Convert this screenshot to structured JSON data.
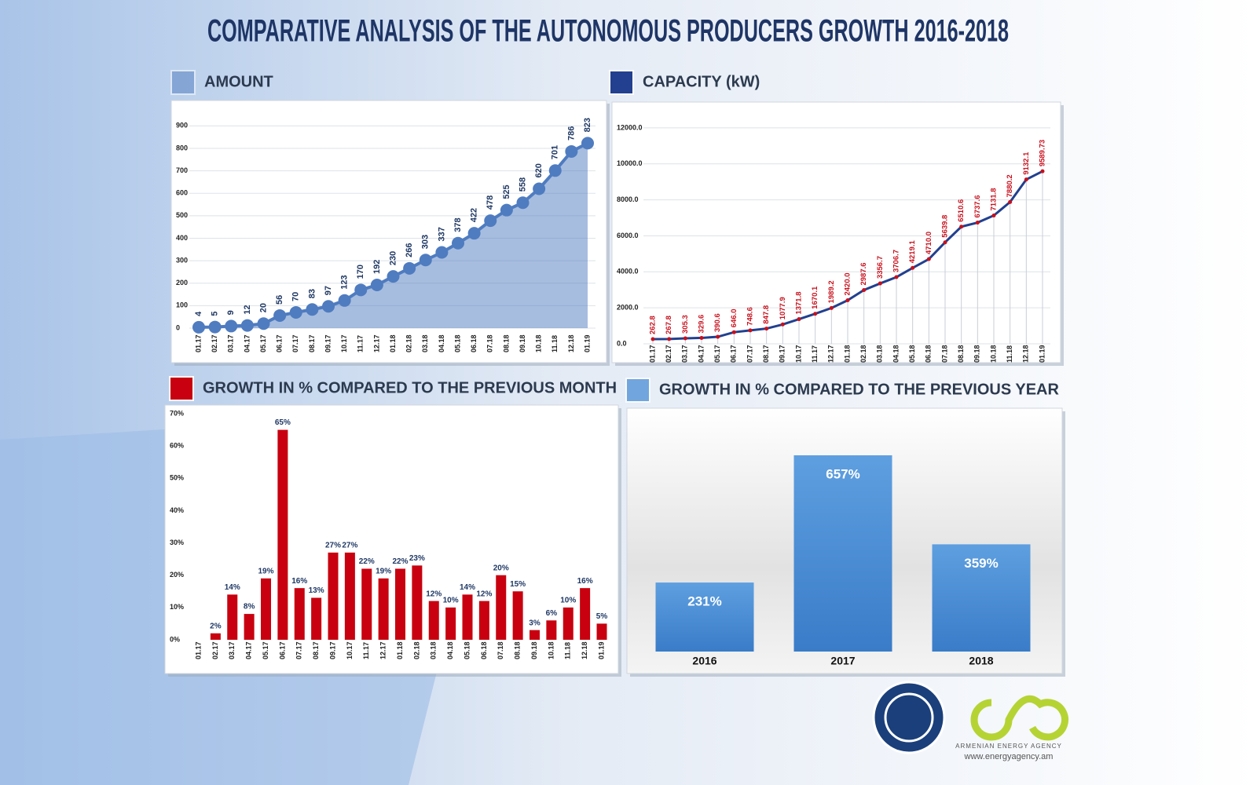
{
  "title": "COMPARATIVE ANALYSIS OF THE AUTONOMOUS PRODUCERS GROWTH 2016-2018",
  "agency": "ARMENIAN ENERGY AGENCY",
  "website": "www.energyagency.am",
  "chart_data": [
    {
      "type": "area",
      "title": "AMOUNT",
      "color": "#4f7cc0",
      "grid": true,
      "categories": [
        "01.17",
        "02.17",
        "03.17",
        "04.17",
        "05.17",
        "06.17",
        "07.17",
        "08.17",
        "09.17",
        "10.17",
        "11.17",
        "12.17",
        "01.18",
        "02.18",
        "03.18",
        "04.18",
        "05.18",
        "06.18",
        "07.18",
        "08.18",
        "09.18",
        "10.18",
        "11.18",
        "12.18",
        "01.19"
      ],
      "values": [
        4,
        5,
        9,
        12,
        20,
        56,
        70,
        83,
        97,
        123,
        170,
        192,
        230,
        266,
        303,
        337,
        378,
        422,
        478,
        525,
        558,
        620,
        701,
        786,
        823
      ],
      "ylim": [
        0,
        950
      ],
      "yticks": [
        0,
        100,
        200,
        300,
        400,
        500,
        600,
        700,
        800,
        900
      ]
    },
    {
      "type": "line",
      "title": "CAPACITY (kW)",
      "color": "#22408f",
      "point_color": "#c8101c",
      "grid": true,
      "categories": [
        "01.17",
        "02.17",
        "03.17",
        "04.17",
        "05.17",
        "06.17",
        "07.17",
        "08.17",
        "09.17",
        "10.17",
        "11.17",
        "12.17",
        "01.18",
        "02.18",
        "03.18",
        "04.18",
        "05.18",
        "06.18",
        "07.18",
        "08.18",
        "09.18",
        "10.18",
        "11.18",
        "12.18",
        "01.19"
      ],
      "values": [
        262.8,
        267.8,
        305.3,
        329.6,
        390.6,
        646.0,
        748.6,
        847.8,
        1077.9,
        1371.8,
        1670.1,
        1989.2,
        2420.0,
        2987.6,
        3356.7,
        3706.7,
        4219.1,
        4710.0,
        5639.8,
        6510.6,
        6737.6,
        7131.8,
        7880.2,
        9132.1,
        9589.73
      ],
      "value_labels": [
        "262.8",
        "267.8",
        "305.3",
        "329.6",
        "390.6",
        "646.0",
        "748.6",
        "847.8",
        "1077.9",
        "1371.8",
        "1670.1",
        "1989.2",
        "2420.0",
        "2987.6",
        "3356.7",
        "3706.7",
        "4219.1",
        "4710.0",
        "5639.8",
        "6510.6",
        "6737.6",
        "7131.8",
        "7880.2",
        "9132.1",
        "9589.73"
      ],
      "ylim": [
        0,
        13000
      ],
      "yticks": [
        {
          "value": 0,
          "label": "0.0"
        },
        {
          "value": 2000,
          "label": "2000.0"
        },
        {
          "value": 4000,
          "label": "4000.0"
        },
        {
          "value": 6000,
          "label": "6000.0"
        },
        {
          "value": 8000,
          "label": "8000.0"
        },
        {
          "value": 10000,
          "label": "10000.0"
        },
        {
          "value": 12000,
          "label": "12000.0"
        }
      ]
    },
    {
      "type": "bar",
      "title": "GROWTH IN % COMPARED TO THE PREVIOUS MONTH",
      "color": "#c8000f",
      "grid": false,
      "categories": [
        "01.17",
        "02.17",
        "03.17",
        "04.17",
        "05.17",
        "06.17",
        "07.17",
        "08.17",
        "09.17",
        "10.17",
        "11.17",
        "12.17",
        "01.18",
        "02.18",
        "03.18",
        "04.18",
        "05.18",
        "06.18",
        "07.18",
        "08.18",
        "09.18",
        "10.18",
        "11.18",
        "12.18",
        "01.19"
      ],
      "values": [
        null,
        2,
        14,
        8,
        19,
        65,
        16,
        13,
        27,
        27,
        22,
        19,
        22,
        23,
        12,
        10,
        14,
        12,
        20,
        15,
        3,
        6,
        10,
        16,
        5
      ],
      "value_labels": [
        null,
        "2%",
        "14%",
        "8%",
        "19%",
        "65%",
        "16%",
        "13%",
        "27%",
        "27%",
        "22%",
        "19%",
        "22%",
        "23%",
        "12%",
        "10%",
        "14%",
        "12%",
        "20%",
        "15%",
        "3%",
        "6%",
        "10%",
        "16%",
        "5%"
      ],
      "ylim": [
        0,
        70
      ],
      "yticks": [
        {
          "value": 0,
          "label": "0%"
        },
        {
          "value": 10,
          "label": "10%"
        },
        {
          "value": 20,
          "label": "20%"
        },
        {
          "value": 30,
          "label": "30%"
        },
        {
          "value": 40,
          "label": "40%"
        },
        {
          "value": 50,
          "label": "50%"
        },
        {
          "value": 60,
          "label": "60%"
        },
        {
          "value": 70,
          "label": "70%"
        }
      ]
    },
    {
      "type": "bar",
      "title": "GROWTH IN % COMPARED TO THE PREVIOUS YEAR",
      "color": "#4a8ed6",
      "grid": false,
      "categories": [
        "2016",
        "2017",
        "2018"
      ],
      "values": [
        231,
        657,
        359
      ],
      "value_labels": [
        "231%",
        "657%",
        "359%"
      ]
    }
  ]
}
